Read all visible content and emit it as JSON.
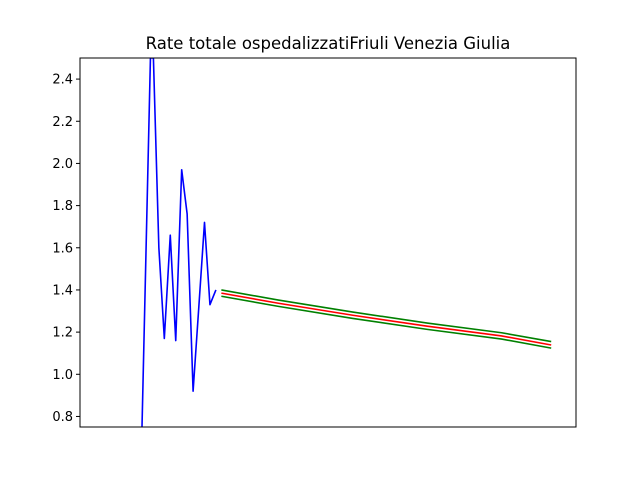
{
  "chart_data": {
    "type": "line",
    "title": "Rate totale ospedalizzatiFriuli Venezia Giulia",
    "xlabel": "",
    "ylabel": "",
    "xlim": [
      0,
      100
    ],
    "ylim": [
      0.75,
      2.5
    ],
    "yticks": [
      "0.8",
      "1.0",
      "1.2",
      "1.4",
      "1.6",
      "1.8",
      "2.0",
      "2.2",
      "2.4"
    ],
    "grid": false,
    "legend": "none",
    "series": [
      {
        "color": "#0000ff",
        "points": [
          [
            12.5,
            0.75
          ],
          [
            14.2,
            2.5
          ],
          [
            14.8,
            2.5
          ],
          [
            15.9,
            1.6
          ],
          [
            17.0,
            1.17
          ],
          [
            18.2,
            1.66
          ],
          [
            19.3,
            1.16
          ],
          [
            20.5,
            1.97
          ],
          [
            21.6,
            1.76
          ],
          [
            22.8,
            0.92
          ],
          [
            23.9,
            1.3
          ],
          [
            25.1,
            1.72
          ],
          [
            26.2,
            1.33
          ],
          [
            27.4,
            1.4
          ]
        ]
      },
      {
        "color": "#008000",
        "points": [
          [
            28.5,
            1.4
          ],
          [
            40,
            1.352
          ],
          [
            55,
            1.295
          ],
          [
            70,
            1.243
          ],
          [
            85,
            1.197
          ],
          [
            95,
            1.155
          ]
        ]
      },
      {
        "color": "#ff0000",
        "points": [
          [
            28.5,
            1.385
          ],
          [
            40,
            1.337
          ],
          [
            55,
            1.28
          ],
          [
            70,
            1.228
          ],
          [
            85,
            1.182
          ],
          [
            95,
            1.139
          ]
        ]
      },
      {
        "color": "#008000",
        "points": [
          [
            28.5,
            1.37
          ],
          [
            40,
            1.322
          ],
          [
            55,
            1.265
          ],
          [
            70,
            1.213
          ],
          [
            85,
            1.167
          ],
          [
            95,
            1.124
          ]
        ]
      }
    ]
  }
}
